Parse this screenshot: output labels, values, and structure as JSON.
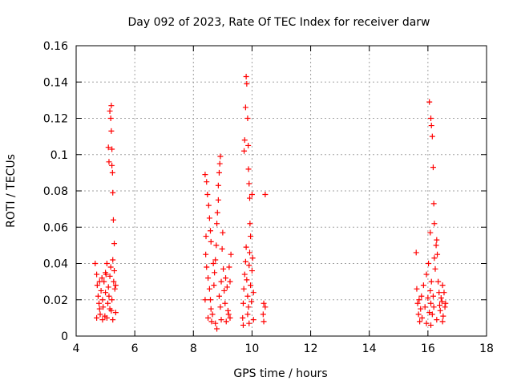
{
  "chart_data": {
    "type": "scatter",
    "title": "Day 092 of 2023, Rate Of TEC Index for receiver darw",
    "xlabel": "GPS time / hours",
    "ylabel": "ROTI / TECUs",
    "xlim": [
      4,
      18
    ],
    "ylim": [
      0,
      0.16
    ],
    "x_ticks": [
      "4",
      "6",
      "8",
      "10",
      "12",
      "14",
      "16",
      "18"
    ],
    "y_ticks": [
      "0",
      "0.02",
      "0.04",
      "0.06",
      "0.08",
      "0.1",
      "0.12",
      "0.14",
      "0.16"
    ],
    "grid": true,
    "marker": "+",
    "color": "#ff0000",
    "series": [
      {
        "points": [
          [
            4.65,
            0.04
          ],
          [
            4.7,
            0.034
          ],
          [
            4.72,
            0.028
          ],
          [
            4.75,
            0.022
          ],
          [
            4.78,
            0.018
          ],
          [
            4.8,
            0.015
          ],
          [
            4.82,
            0.012
          ],
          [
            4.85,
            0.025
          ],
          [
            4.88,
            0.032
          ],
          [
            4.9,
            0.02
          ],
          [
            4.92,
            0.016
          ],
          [
            4.95,
            0.03
          ],
          [
            4.98,
            0.011
          ],
          [
            5.0,
            0.024
          ],
          [
            5.02,
            0.034
          ],
          [
            5.05,
            0.04
          ],
          [
            5.08,
            0.018
          ],
          [
            5.1,
            0.027
          ],
          [
            5.12,
            0.022
          ],
          [
            5.15,
            0.033
          ],
          [
            5.18,
            0.038
          ],
          [
            5.2,
            0.014
          ],
          [
            5.22,
            0.02
          ],
          [
            5.25,
            0.042
          ],
          [
            5.28,
            0.03
          ],
          [
            5.3,
            0.036
          ],
          [
            5.32,
            0.026
          ],
          [
            5.35,
            0.013
          ],
          [
            5.1,
            0.104
          ],
          [
            5.12,
            0.096
          ],
          [
            5.15,
            0.124
          ],
          [
            5.18,
            0.12
          ],
          [
            5.2,
            0.127
          ],
          [
            5.2,
            0.113
          ],
          [
            5.22,
            0.103
          ],
          [
            5.22,
            0.094
          ],
          [
            5.24,
            0.09
          ],
          [
            5.25,
            0.079
          ],
          [
            5.27,
            0.064
          ],
          [
            5.3,
            0.051
          ],
          [
            4.7,
            0.01
          ],
          [
            4.9,
            0.009
          ],
          [
            5.05,
            0.01
          ],
          [
            5.25,
            0.009
          ],
          [
            5.0,
            0.035
          ],
          [
            4.8,
            0.03
          ],
          [
            5.15,
            0.015
          ],
          [
            5.35,
            0.028
          ],
          [
            8.4,
            0.089
          ],
          [
            8.45,
            0.085
          ],
          [
            8.48,
            0.078
          ],
          [
            8.52,
            0.072
          ],
          [
            8.55,
            0.065
          ],
          [
            8.58,
            0.058
          ],
          [
            8.6,
            0.052
          ],
          [
            8.42,
            0.045
          ],
          [
            8.45,
            0.038
          ],
          [
            8.5,
            0.032
          ],
          [
            8.55,
            0.026
          ],
          [
            8.58,
            0.02
          ],
          [
            8.6,
            0.015
          ],
          [
            8.65,
            0.012
          ],
          [
            8.7,
            0.028
          ],
          [
            8.72,
            0.035
          ],
          [
            8.75,
            0.042
          ],
          [
            8.78,
            0.05
          ],
          [
            8.8,
            0.062
          ],
          [
            8.82,
            0.068
          ],
          [
            8.85,
            0.075
          ],
          [
            8.85,
            0.083
          ],
          [
            8.88,
            0.09
          ],
          [
            8.9,
            0.095
          ],
          [
            8.92,
            0.099
          ],
          [
            8.88,
            0.022
          ],
          [
            8.92,
            0.016
          ],
          [
            8.95,
            0.03
          ],
          [
            8.98,
            0.048
          ],
          [
            9.0,
            0.057
          ],
          [
            9.02,
            0.037
          ],
          [
            9.05,
            0.025
          ],
          [
            9.08,
            0.018
          ],
          [
            9.1,
            0.032
          ],
          [
            9.15,
            0.027
          ],
          [
            9.18,
            0.014
          ],
          [
            9.2,
            0.012
          ],
          [
            9.22,
            0.038
          ],
          [
            9.25,
            0.03
          ],
          [
            9.28,
            0.045
          ],
          [
            8.5,
            0.01
          ],
          [
            8.62,
            0.008
          ],
          [
            8.75,
            0.007
          ],
          [
            8.8,
            0.004
          ],
          [
            8.95,
            0.009
          ],
          [
            9.12,
            0.008
          ],
          [
            9.25,
            0.01
          ],
          [
            8.68,
            0.04
          ],
          [
            8.4,
            0.02
          ],
          [
            8.43,
            0.055
          ],
          [
            9.68,
            0.01
          ],
          [
            9.7,
            0.018
          ],
          [
            9.72,
            0.026
          ],
          [
            9.75,
            0.034
          ],
          [
            9.78,
            0.041
          ],
          [
            9.8,
            0.049
          ],
          [
            9.82,
            0.031
          ],
          [
            9.85,
            0.022
          ],
          [
            9.88,
            0.016
          ],
          [
            9.9,
            0.039
          ],
          [
            9.92,
            0.046
          ],
          [
            9.95,
            0.028
          ],
          [
            9.98,
            0.019
          ],
          [
            10.0,
            0.036
          ],
          [
            10.02,
            0.043
          ],
          [
            10.05,
            0.024
          ],
          [
            9.73,
            0.102
          ],
          [
            9.75,
            0.108
          ],
          [
            9.78,
            0.126
          ],
          [
            9.8,
            0.143
          ],
          [
            9.82,
            0.139
          ],
          [
            9.85,
            0.12
          ],
          [
            9.87,
            0.105
          ],
          [
            9.88,
            0.092
          ],
          [
            9.9,
            0.084
          ],
          [
            9.92,
            0.076
          ],
          [
            9.93,
            0.062
          ],
          [
            9.95,
            0.055
          ],
          [
            10.0,
            0.078
          ],
          [
            10.45,
            0.078
          ],
          [
            10.4,
            0.018
          ],
          [
            10.45,
            0.016
          ],
          [
            10.4,
            0.008
          ],
          [
            10.38,
            0.012
          ],
          [
            9.7,
            0.006
          ],
          [
            9.9,
            0.007
          ],
          [
            10.05,
            0.009
          ],
          [
            9.85,
            0.012
          ],
          [
            15.6,
            0.046
          ],
          [
            15.62,
            0.026
          ],
          [
            15.65,
            0.018
          ],
          [
            15.68,
            0.012
          ],
          [
            15.7,
            0.02
          ],
          [
            15.75,
            0.015
          ],
          [
            15.78,
            0.022
          ],
          [
            15.8,
            0.01
          ],
          [
            15.85,
            0.028
          ],
          [
            15.9,
            0.016
          ],
          [
            15.95,
            0.034
          ],
          [
            16.0,
            0.021
          ],
          [
            16.02,
            0.04
          ],
          [
            16.05,
            0.013
          ],
          [
            16.08,
            0.025
          ],
          [
            16.1,
            0.018
          ],
          [
            16.12,
            0.03
          ],
          [
            16.15,
            0.012
          ],
          [
            16.18,
            0.022
          ],
          [
            16.2,
            0.016
          ],
          [
            16.22,
            0.043
          ],
          [
            16.25,
            0.037
          ],
          [
            16.28,
            0.05
          ],
          [
            16.3,
            0.053
          ],
          [
            16.32,
            0.045
          ],
          [
            16.35,
            0.03
          ],
          [
            16.38,
            0.024
          ],
          [
            16.4,
            0.017
          ],
          [
            16.42,
            0.014
          ],
          [
            16.45,
            0.021
          ],
          [
            16.48,
            0.019
          ],
          [
            16.5,
            0.028
          ],
          [
            16.52,
            0.011
          ],
          [
            16.55,
            0.024
          ],
          [
            16.58,
            0.016
          ],
          [
            16.6,
            0.018
          ],
          [
            16.05,
            0.129
          ],
          [
            16.1,
            0.12
          ],
          [
            16.12,
            0.116
          ],
          [
            16.15,
            0.11
          ],
          [
            16.18,
            0.093
          ],
          [
            16.2,
            0.073
          ],
          [
            16.22,
            0.062
          ],
          [
            16.08,
            0.057
          ],
          [
            15.72,
            0.008
          ],
          [
            15.95,
            0.007
          ],
          [
            16.1,
            0.006
          ],
          [
            16.3,
            0.009
          ],
          [
            16.5,
            0.008
          ]
        ]
      }
    ]
  }
}
